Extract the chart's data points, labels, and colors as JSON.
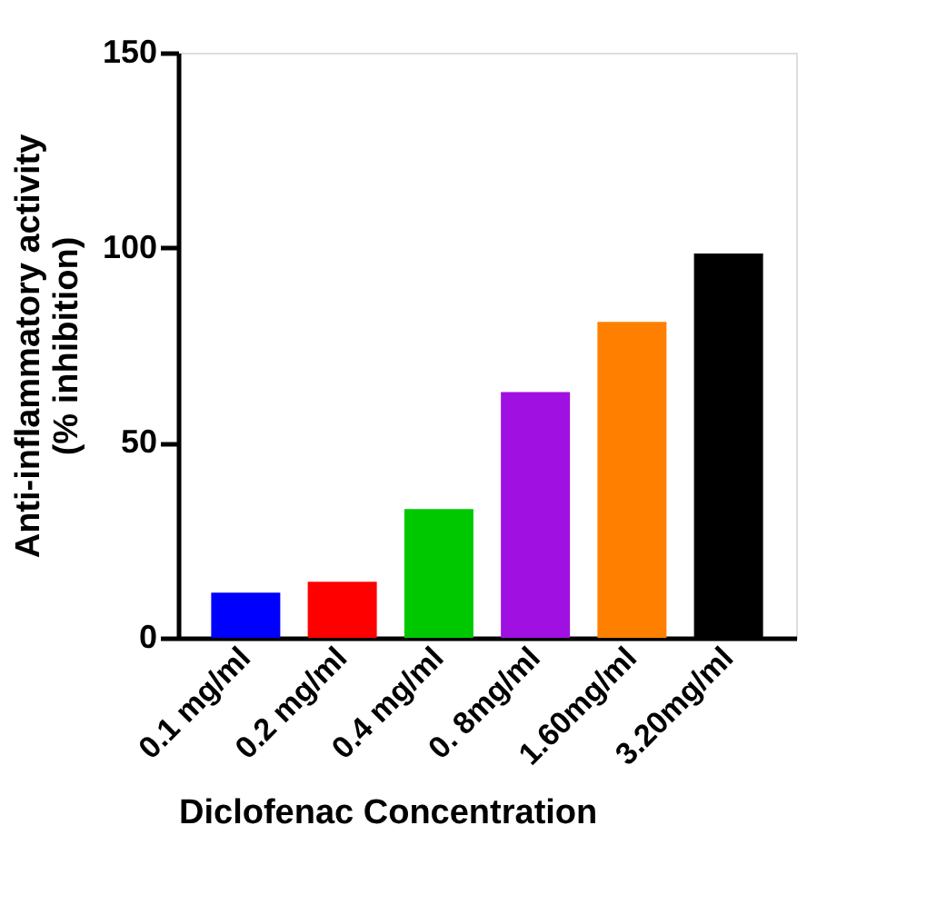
{
  "chart_data": {
    "type": "bar",
    "xlabel": "Diclofenac Concentration",
    "ylabel": "Anti-inflammatory activity\n(% inhibition)",
    "categories": [
      "0.1 mg/ml",
      "0.2 mg/ml",
      "0.4 mg/ml",
      "0. 8mg/ml",
      "1.60mg/ml",
      "3.20mg/ml"
    ],
    "values": [
      11.6,
      14.4,
      33,
      63,
      81,
      98.5
    ],
    "colors": [
      "#0000ff",
      "#ff0000",
      "#00c800",
      "#a010e0",
      "#ff8000",
      "#000000"
    ],
    "ylim": [
      0,
      150
    ],
    "yticks": [
      0,
      50,
      100,
      150
    ],
    "grid": false
  }
}
